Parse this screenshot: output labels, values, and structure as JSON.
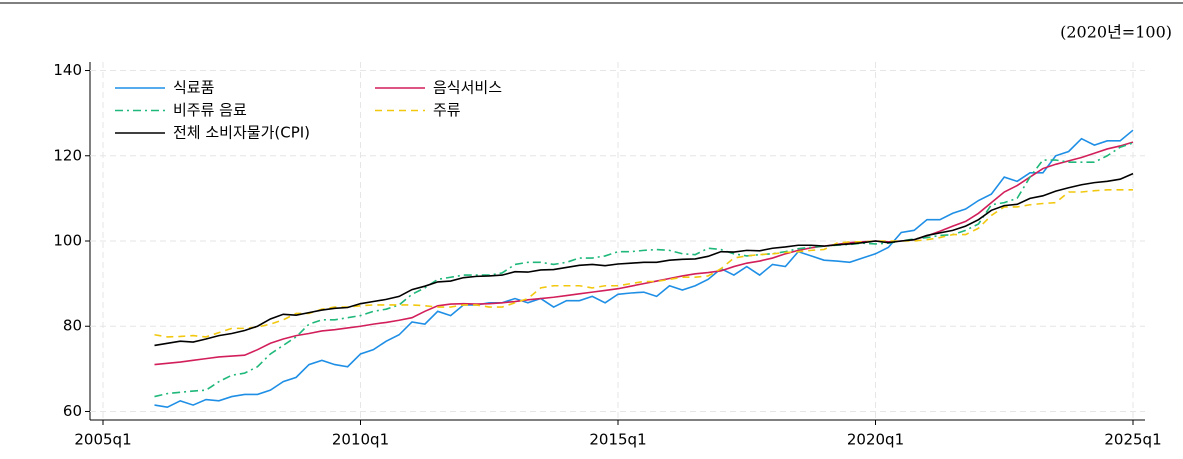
{
  "chart_data": {
    "type": "line",
    "unit_note": "(2020년=100)",
    "x": [
      "2006q1",
      "2006q2",
      "2006q3",
      "2006q4",
      "2007q1",
      "2007q2",
      "2007q3",
      "2007q4",
      "2008q1",
      "2008q2",
      "2008q3",
      "2008q4",
      "2009q1",
      "2009q2",
      "2009q3",
      "2009q4",
      "2010q1",
      "2010q2",
      "2010q3",
      "2010q4",
      "2011q1",
      "2011q2",
      "2011q3",
      "2011q4",
      "2012q1",
      "2012q2",
      "2012q3",
      "2012q4",
      "2013q1",
      "2013q2",
      "2013q3",
      "2013q4",
      "2014q1",
      "2014q2",
      "2014q3",
      "2014q4",
      "2015q1",
      "2015q2",
      "2015q3",
      "2015q4",
      "2016q1",
      "2016q2",
      "2016q3",
      "2016q4",
      "2017q1",
      "2017q2",
      "2017q3",
      "2017q4",
      "2018q1",
      "2018q2",
      "2018q3",
      "2018q4",
      "2019q1",
      "2019q2",
      "2019q3",
      "2019q4",
      "2020q1",
      "2020q2",
      "2020q3",
      "2020q4",
      "2021q1",
      "2021q2",
      "2021q3",
      "2021q4",
      "2022q1",
      "2022q2",
      "2022q3",
      "2022q4",
      "2023q1",
      "2023q2",
      "2023q3",
      "2023q4",
      "2024q1",
      "2024q2",
      "2024q3",
      "2024q4",
      "2025q1"
    ],
    "xlim": [
      "2005q1",
      "2025q1"
    ],
    "xticks": [
      "2005q1",
      "2010q1",
      "2015q1",
      "2020q1",
      "2025q1"
    ],
    "ylim": [
      58,
      142
    ],
    "yticks": [
      60,
      80,
      100,
      120,
      140
    ],
    "grid": true,
    "legend": "top-left",
    "series": [
      {
        "name": "식료품",
        "color": "#1f8fe6",
        "style": "solid",
        "values": [
          61.5,
          61,
          62.5,
          61.5,
          62.8,
          62.5,
          63.5,
          64,
          64,
          65,
          67,
          68,
          71,
          72,
          71,
          70.5,
          73.5,
          74.5,
          76.5,
          78,
          81,
          80.5,
          83.5,
          82.5,
          85,
          85,
          85.5,
          85.5,
          86.5,
          85.5,
          86.5,
          84.5,
          86,
          86,
          87,
          85.5,
          87.5,
          87.8,
          88,
          87,
          89.5,
          88.5,
          89.5,
          91,
          93.5,
          92,
          94,
          92,
          94.5,
          94,
          97.5,
          96.5,
          95.5,
          95.3,
          95,
          96,
          97,
          98.5,
          102,
          102.5,
          105,
          105,
          106.5,
          107.5,
          109.5,
          111,
          115,
          114,
          116,
          116,
          120,
          121,
          124,
          122.5,
          123.5,
          123.5,
          126
        ]
      },
      {
        "name": "음식서비스",
        "color": "#d21f5a",
        "style": "solid",
        "values": [
          71,
          71.3,
          71.6,
          72,
          72.4,
          72.8,
          73,
          73.2,
          74.5,
          76,
          77,
          77.8,
          78.3,
          78.9,
          79.2,
          79.6,
          80,
          80.5,
          80.9,
          81.4,
          82,
          83.5,
          84.8,
          85.2,
          85.3,
          85.2,
          85.3,
          85.5,
          85.8,
          86.2,
          86.5,
          86.8,
          87.2,
          87.6,
          88,
          88.4,
          88.8,
          89.4,
          90,
          90.6,
          91.2,
          91.8,
          92.3,
          92.6,
          93,
          94,
          94.8,
          95.3,
          96,
          97,
          97.8,
          98.4,
          98.8,
          99.2,
          99.6,
          99.8,
          100,
          99.8,
          100,
          100.3,
          101.2,
          102.3,
          103.5,
          104.6,
          106.5,
          109,
          111.5,
          113,
          115,
          117,
          118,
          118.8,
          119.6,
          120.6,
          121.6,
          122.3,
          123.2
        ]
      },
      {
        "name": "비주류 음료",
        "color": "#1fb87a",
        "style": "dashdot",
        "values": [
          63.5,
          64.2,
          64.5,
          64.8,
          65,
          67,
          68.5,
          69,
          70.5,
          73.5,
          75.5,
          77.5,
          80.5,
          81.5,
          81.5,
          82,
          82.5,
          83.5,
          84,
          85,
          87.5,
          89,
          91,
          91.5,
          92,
          92,
          92,
          92.5,
          94.5,
          95,
          95,
          94.5,
          95,
          96,
          96,
          96.5,
          97.5,
          97.5,
          97.8,
          98,
          97.8,
          97,
          96.8,
          98.3,
          98,
          97,
          96.5,
          96.8,
          97,
          97.5,
          98.2,
          98.5,
          98.8,
          99,
          99.2,
          99.5,
          99.3,
          99.5,
          100,
          100.5,
          100.8,
          101.3,
          101.5,
          102.5,
          104,
          108.5,
          109,
          110,
          115,
          119,
          119,
          118.5,
          118.5,
          118.5,
          120,
          122,
          123
        ]
      },
      {
        "name": "주류",
        "color": "#f2c80f",
        "style": "dash",
        "values": [
          78,
          77.5,
          77.6,
          77.8,
          77.5,
          78.5,
          79.5,
          79.5,
          79.8,
          80.5,
          81.5,
          83,
          83,
          84,
          84.5,
          84.5,
          84.8,
          85,
          85,
          85,
          85,
          84.8,
          84.5,
          84.5,
          85,
          85,
          84.5,
          84.5,
          85.5,
          86.5,
          89,
          89.5,
          89.5,
          89.5,
          89,
          89.5,
          89.5,
          90,
          90.5,
          90.5,
          91,
          91.5,
          91.5,
          91.8,
          93.5,
          96,
          96.5,
          96.8,
          97,
          97.3,
          97.5,
          97.8,
          98,
          99.5,
          99.8,
          99.8,
          100,
          100,
          100,
          100,
          100.3,
          100.8,
          101.5,
          101.5,
          103,
          106,
          108,
          108,
          108.5,
          108.8,
          109,
          111.5,
          111.5,
          111.8,
          112,
          112,
          112
        ]
      },
      {
        "name": "전체 소비자물가(CPI)",
        "color": "#000000",
        "style": "solid",
        "values": [
          75.5,
          76,
          76.5,
          76.3,
          77,
          77.8,
          78.3,
          79,
          80,
          81.7,
          82.8,
          82.6,
          83.2,
          83.8,
          84.2,
          84.4,
          85.3,
          85.8,
          86.3,
          87,
          88.6,
          89.4,
          90.4,
          90.6,
          91.4,
          91.7,
          91.8,
          92,
          92.8,
          92.7,
          93.2,
          93.3,
          93.8,
          94.3,
          94.5,
          94.2,
          94.6,
          94.8,
          95,
          95,
          95.5,
          95.7,
          95.8,
          96.4,
          97.5,
          97.4,
          97.8,
          97.7,
          98.3,
          98.6,
          99,
          99,
          98.8,
          99.1,
          99.3,
          99.6,
          100,
          99.6,
          100,
          100.3,
          101.3,
          101.9,
          102.5,
          103.5,
          105,
          107.2,
          108.3,
          108.6,
          110,
          110.6,
          111.7,
          112.5,
          113.2,
          113.7,
          114,
          114.5,
          115.8
        ]
      }
    ]
  }
}
